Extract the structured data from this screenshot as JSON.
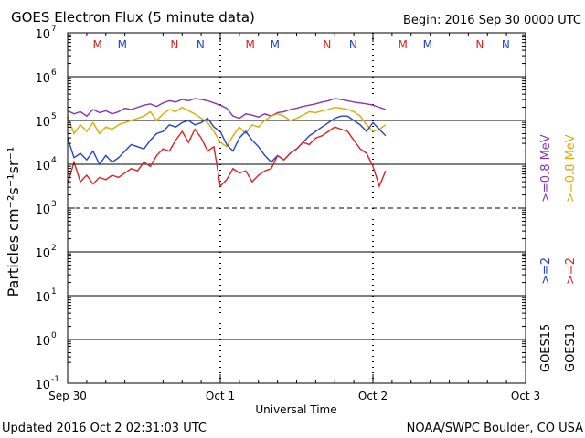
{
  "chart_data": {
    "type": "line",
    "title": "GOES Electron Flux (5 minute data)",
    "begin_label": "Begin: 2016 Sep 30 0000 UTC",
    "xlabel": "Universal Time",
    "ylabel": "Particles cm⁻²s⁻¹sr⁻¹",
    "updated": "Updated 2016 Oct  2 02:31:03 UTC",
    "credit": "NOAA/SWPC Boulder, CO USA",
    "x_unit": "hours since 2016 Sep 30 0000 UTC",
    "xlim": [
      0,
      72
    ],
    "ylim_log10": [
      -1,
      7
    ],
    "x_ticks": [
      {
        "hour": 0,
        "label": "Sep 30"
      },
      {
        "hour": 24,
        "label": "Oct 1"
      },
      {
        "hour": 48,
        "label": "Oct 2"
      },
      {
        "hour": 72,
        "label": "Oct 3"
      }
    ],
    "y_ticks": [
      {
        "exp": 7,
        "base": "10",
        "sup": "7"
      },
      {
        "exp": 6,
        "base": "10",
        "sup": "6"
      },
      {
        "exp": 5,
        "base": "10",
        "sup": "5"
      },
      {
        "exp": 4,
        "base": "10",
        "sup": "4"
      },
      {
        "exp": 3,
        "base": "10",
        "sup": "3"
      },
      {
        "exp": 2,
        "base": "10",
        "sup": "2"
      },
      {
        "exp": 1,
        "base": "10",
        "sup": "1"
      },
      {
        "exp": 0,
        "base": "10",
        "sup": "0"
      },
      {
        "exp": -1,
        "base": "10",
        "sup": "-1"
      }
    ],
    "gridlines_log10": [
      6,
      5,
      4,
      2,
      1,
      0
    ],
    "threshold_log10": 3,
    "markers": [
      {
        "hour": 4.7,
        "label": "M",
        "color": "#dd2222"
      },
      {
        "hour": 8.6,
        "label": "M",
        "color": "#2244cc"
      },
      {
        "hour": 16.8,
        "label": "N",
        "color": "#dd2222"
      },
      {
        "hour": 20.9,
        "label": "N",
        "color": "#2244cc"
      },
      {
        "hour": 28.7,
        "label": "M",
        "color": "#dd2222"
      },
      {
        "hour": 32.6,
        "label": "M",
        "color": "#2244cc"
      },
      {
        "hour": 40.8,
        "label": "N",
        "color": "#dd2222"
      },
      {
        "hour": 44.9,
        "label": "N",
        "color": "#2244cc"
      },
      {
        "hour": 52.7,
        "label": "M",
        "color": "#dd2222"
      },
      {
        "hour": 56.6,
        "label": "M",
        "color": "#2244cc"
      },
      {
        "hour": 64.8,
        "label": "N",
        "color": "#dd2222"
      },
      {
        "hour": 68.9,
        "label": "N",
        "color": "#2244cc"
      }
    ],
    "midnight_hours": [
      24,
      48
    ],
    "legend": {
      "energies": [
        {
          "label": ">=0.8 MeV",
          "color": "#8833bb"
        },
        {
          "label": ">=0.8 MeV",
          "color": "#ddaa00"
        },
        {
          "label": ">=2",
          "color": "#2244cc"
        },
        {
          "label": ">=2",
          "color": "#dd2222"
        }
      ],
      "satellites": [
        "GOES15",
        "GOES13"
      ]
    },
    "series": [
      {
        "name": "GOES15 >=0.8 MeV",
        "color": "#8833bb",
        "x": [
          0,
          1,
          2,
          3,
          4,
          5,
          6,
          7,
          8,
          9,
          10,
          11,
          12,
          13,
          14,
          15,
          16,
          17,
          18,
          19,
          20,
          21,
          22,
          23,
          24,
          25,
          26,
          27,
          28,
          29,
          30,
          31,
          32,
          33,
          34,
          35,
          36,
          37,
          38,
          39,
          40,
          41,
          42,
          43,
          44,
          45,
          46,
          47,
          48,
          49,
          50
        ],
        "y": [
          5.22,
          5.15,
          5.2,
          5.1,
          5.25,
          5.18,
          5.22,
          5.15,
          5.2,
          5.28,
          5.25,
          5.3,
          5.35,
          5.38,
          5.32,
          5.4,
          5.45,
          5.42,
          5.48,
          5.45,
          5.5,
          5.48,
          5.45,
          5.4,
          5.35,
          5.28,
          5.1,
          5.05,
          5.15,
          5.12,
          5.08,
          5.15,
          5.1,
          5.18,
          5.2,
          5.25,
          5.28,
          5.32,
          5.35,
          5.38,
          5.42,
          5.45,
          5.5,
          5.48,
          5.45,
          5.42,
          5.4,
          5.38,
          5.35,
          5.3,
          5.25
        ]
      },
      {
        "name": "GOES13 >=0.8 MeV",
        "color": "#ddaa00",
        "x": [
          0,
          1,
          2,
          3,
          4,
          5,
          6,
          7,
          8,
          9,
          10,
          11,
          12,
          13,
          14,
          15,
          16,
          17,
          18,
          19,
          20,
          21,
          22,
          23,
          24,
          25,
          26,
          27,
          28,
          29,
          30,
          31,
          32,
          33,
          34,
          35,
          36,
          37,
          38,
          39,
          40,
          41,
          42,
          43,
          44,
          45,
          46,
          47,
          48,
          49,
          50
        ],
        "y": [
          5.1,
          4.7,
          4.9,
          4.75,
          4.95,
          4.7,
          4.85,
          4.8,
          4.9,
          4.95,
          5.0,
          5.05,
          5.1,
          5.2,
          5.0,
          5.15,
          5.25,
          5.2,
          5.3,
          5.22,
          5.15,
          5.05,
          4.95,
          4.75,
          4.5,
          4.4,
          4.65,
          4.85,
          4.7,
          4.9,
          4.85,
          5.0,
          5.1,
          5.15,
          5.1,
          5.0,
          5.05,
          5.12,
          5.2,
          5.18,
          5.22,
          5.25,
          5.3,
          5.28,
          5.25,
          5.2,
          5.1,
          4.9,
          4.75,
          4.8,
          4.9
        ]
      },
      {
        "name": "GOES15 >=2 MeV",
        "color": "#2244cc",
        "x": [
          0,
          1,
          2,
          3,
          4,
          5,
          6,
          7,
          8,
          9,
          10,
          11,
          12,
          13,
          14,
          15,
          16,
          17,
          18,
          19,
          20,
          21,
          22,
          23,
          24,
          25,
          26,
          27,
          28,
          29,
          30,
          31,
          32,
          33,
          34,
          35,
          36,
          37,
          38,
          39,
          40,
          41,
          42,
          43,
          44,
          45,
          46,
          47,
          48,
          49,
          50
        ],
        "y": [
          4.6,
          4.15,
          4.25,
          4.1,
          4.3,
          4.0,
          4.2,
          4.05,
          4.15,
          4.3,
          4.45,
          4.4,
          4.35,
          4.55,
          4.7,
          4.75,
          4.9,
          4.85,
          4.95,
          5.0,
          4.9,
          4.95,
          5.05,
          4.85,
          4.75,
          4.45,
          4.3,
          4.6,
          4.75,
          4.55,
          4.4,
          4.2,
          4.05,
          4.2,
          4.1,
          4.25,
          4.35,
          4.5,
          4.65,
          4.75,
          4.85,
          4.95,
          5.05,
          5.1,
          5.1,
          5.0,
          4.9,
          4.75,
          4.95,
          4.8,
          4.65
        ]
      },
      {
        "name": "GOES13 >=2 MeV",
        "color": "#dd2222",
        "x": [
          0,
          1,
          2,
          3,
          4,
          5,
          6,
          7,
          8,
          9,
          10,
          11,
          12,
          13,
          14,
          15,
          16,
          17,
          18,
          19,
          20,
          21,
          22,
          23,
          24,
          25,
          26,
          27,
          28,
          29,
          30,
          31,
          32,
          33,
          34,
          35,
          36,
          37,
          38,
          39,
          40,
          41,
          42,
          43,
          44,
          45,
          46,
          47,
          48,
          49,
          50
        ],
        "y": [
          3.55,
          4.05,
          3.6,
          3.75,
          3.55,
          3.7,
          3.65,
          3.75,
          3.7,
          3.8,
          3.9,
          3.85,
          4.05,
          3.95,
          4.2,
          4.35,
          4.3,
          4.55,
          4.75,
          4.5,
          4.8,
          4.6,
          4.3,
          4.4,
          3.5,
          3.65,
          3.9,
          3.8,
          3.85,
          3.6,
          3.75,
          3.85,
          3.9,
          4.2,
          4.1,
          4.25,
          4.35,
          4.5,
          4.45,
          4.6,
          4.65,
          4.75,
          4.85,
          4.8,
          4.75,
          4.55,
          4.35,
          4.25,
          3.95,
          3.5,
          3.85
        ]
      }
    ]
  }
}
